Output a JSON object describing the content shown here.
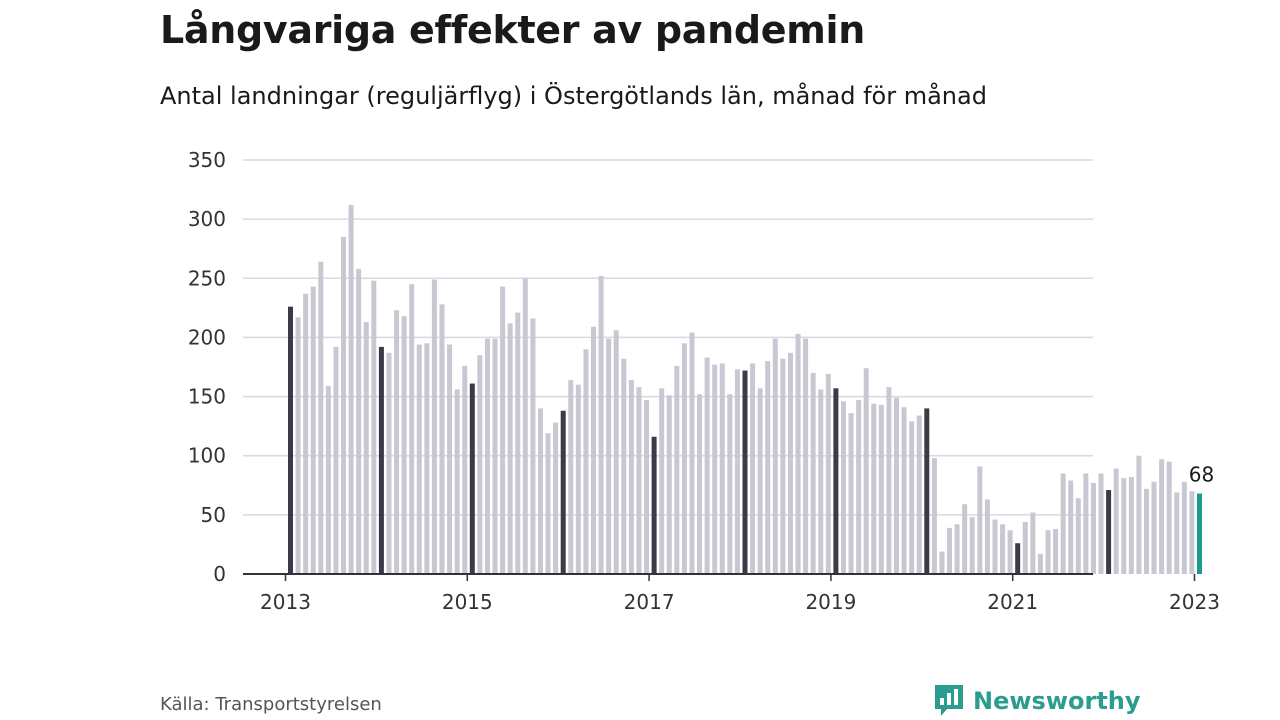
{
  "title": "Långvariga effekter av pandemin",
  "subtitle": "Antal landningar (reguljärflyg) i Östergötlands län, månad för månad",
  "source": "Källa: Transportstyrelsen",
  "brand": {
    "name": "Newsworthy",
    "icon": "newsworthy-logo-icon"
  },
  "colors": {
    "bar": "#c8c8d2",
    "january_bar": "#3a3a48",
    "latest_bar": "#1a9a90",
    "grid": "#d9d9df",
    "axis": "#333333",
    "brand": "#2a9d8f"
  },
  "chart_data": {
    "type": "bar",
    "xlabel": "",
    "ylabel": "",
    "ylim": [
      0,
      350
    ],
    "yticks": [
      0,
      50,
      100,
      150,
      200,
      250,
      300,
      350
    ],
    "xticks": [
      "2013",
      "2015",
      "2017",
      "2019",
      "2021",
      "2023"
    ],
    "grid": true,
    "start": "2013-01",
    "end": "2023-01",
    "highlight": "January of each year shown in dark color; latest month (2023-01) in teal",
    "annotation": {
      "month": "2023-01",
      "label": "68"
    },
    "values": [
      226,
      217,
      237,
      243,
      264,
      159,
      192,
      285,
      312,
      258,
      213,
      248,
      192,
      187,
      223,
      218,
      245,
      194,
      195,
      249,
      228,
      194,
      156,
      176,
      161,
      185,
      199,
      199,
      243,
      212,
      221,
      250,
      216,
      140,
      119,
      128,
      138,
      164,
      160,
      190,
      209,
      252,
      199,
      206,
      182,
      164,
      158,
      147,
      116,
      157,
      151,
      176,
      195,
      204,
      152,
      183,
      177,
      178,
      152,
      173,
      172,
      178,
      157,
      180,
      199,
      182,
      187,
      203,
      199,
      170,
      156,
      169,
      157,
      146,
      136,
      147,
      174,
      144,
      143,
      158,
      149,
      141,
      129,
      134,
      140,
      98,
      19,
      39,
      42,
      59,
      48,
      91,
      63,
      46,
      42,
      37,
      26,
      44,
      52,
      17,
      37,
      38,
      85,
      79,
      64,
      85,
      77,
      85,
      71,
      89,
      81,
      82,
      100,
      72,
      78,
      97,
      95,
      69,
      78,
      70,
      68
    ]
  }
}
